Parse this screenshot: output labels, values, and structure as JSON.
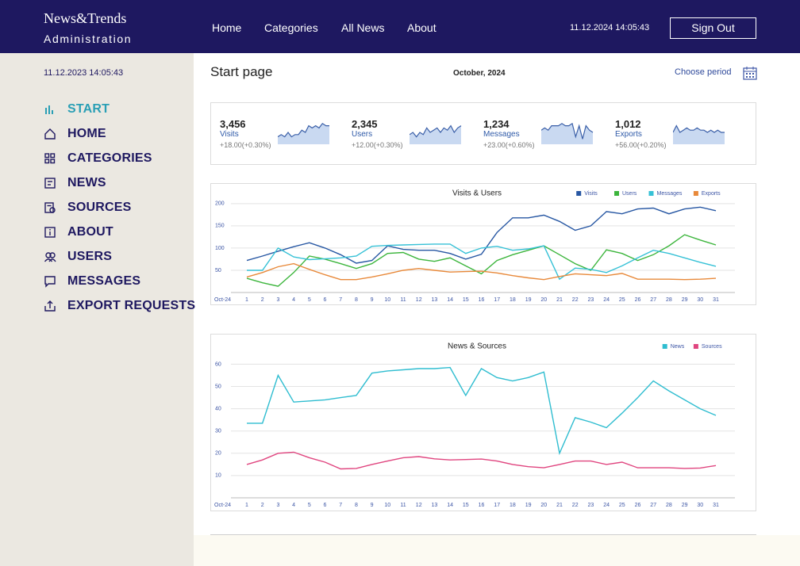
{
  "header": {
    "brand": "News&Trends",
    "subtitle": "Administration",
    "nav": [
      "Home",
      "Categories",
      "All News",
      "About"
    ],
    "datetime": "11.12.2024 14:05:43",
    "button": "Sign Out"
  },
  "sidebar": {
    "datetime": "11.12.2023 14:05:43",
    "menu": [
      "START",
      "HOME",
      "CATEGORIES",
      "NEWS",
      "SOURCES",
      "ABOUT",
      "USERS",
      "MESSAGES",
      "EXPORT REQUESTS"
    ]
  },
  "main": {
    "title": "Start page",
    "period": "October, 2024",
    "choose": "Choose period"
  },
  "stats": [
    {
      "value": "3,456",
      "label": "Visits",
      "change": "+18.00(+0.30%)",
      "spark": [
        3,
        4,
        3,
        5,
        3,
        4,
        4,
        6,
        5,
        8,
        7,
        8,
        7,
        9,
        8,
        8
      ]
    },
    {
      "value": "2,345",
      "label": "Users",
      "change": "+12.00(+0.30%)",
      "spark": [
        4,
        5,
        3,
        5,
        4,
        7,
        5,
        6,
        7,
        5,
        7,
        6,
        8,
        5,
        7,
        8
      ]
    },
    {
      "value": "1,234",
      "label": "Messages",
      "change": "+23.00(+0.60%)",
      "spark": [
        6,
        7,
        6,
        8,
        8,
        8,
        9,
        8,
        8,
        9,
        3,
        8,
        2,
        8,
        6,
        5
      ]
    },
    {
      "value": "1,012",
      "label": "Exports",
      "change": "+56.00(+0.20%)",
      "spark": [
        5,
        8,
        5,
        6,
        7,
        6,
        6,
        7,
        6,
        6,
        5,
        6,
        5,
        6,
        5,
        5
      ]
    }
  ],
  "chart_data": [
    {
      "type": "line",
      "title": "Visits & Users",
      "categories": [
        "Oct-24",
        "1",
        "2",
        "3",
        "4",
        "5",
        "6",
        "7",
        "8",
        "9",
        "10",
        "11",
        "12",
        "13",
        "14",
        "15",
        "16",
        "17",
        "18",
        "19",
        "20",
        "21",
        "22",
        "23",
        "24",
        "25",
        "26",
        "27",
        "28",
        "29",
        "30",
        "31"
      ],
      "ylim": [
        0,
        214
      ],
      "yticks": [
        50,
        100,
        150,
        200
      ],
      "grid": true,
      "legend": "top-right",
      "series": [
        {
          "name": "Visits",
          "color": "#2757a3",
          "values": [
            null,
            72,
            82,
            93,
            103,
            112,
            100,
            85,
            66,
            72,
            105,
            97,
            95,
            95,
            88,
            75,
            86,
            135,
            168,
            168,
            174,
            160,
            140,
            150,
            182,
            177,
            188,
            190,
            177,
            188,
            192,
            184
          ]
        },
        {
          "name": "Users",
          "color": "#3cb53c",
          "values": [
            null,
            32,
            22,
            14,
            45,
            82,
            75,
            65,
            54,
            65,
            88,
            90,
            75,
            70,
            78,
            60,
            42,
            72,
            85,
            95,
            105,
            85,
            65,
            50,
            96,
            88,
            72,
            85,
            105,
            130,
            118,
            107
          ]
        },
        {
          "name": "Messages",
          "color": "#36c1d6",
          "values": [
            null,
            50,
            50,
            100,
            80,
            74,
            76,
            78,
            82,
            104,
            106,
            107,
            108,
            109,
            109,
            88,
            100,
            104,
            95,
            98,
            105,
            30,
            55,
            52,
            45,
            60,
            78,
            95,
            88,
            78,
            68,
            59
          ]
        },
        {
          "name": "Exports",
          "color": "#e8893a",
          "values": [
            null,
            35,
            45,
            58,
            65,
            52,
            40,
            29,
            29,
            35,
            42,
            50,
            54,
            50,
            46,
            47,
            48,
            44,
            38,
            33,
            29,
            36,
            42,
            40,
            38,
            43,
            30,
            30,
            30,
            29,
            30,
            32
          ]
        }
      ]
    },
    {
      "type": "line",
      "title": "News & Sources",
      "categories": [
        "Oct-24",
        "1",
        "2",
        "3",
        "4",
        "5",
        "6",
        "7",
        "8",
        "9",
        "10",
        "11",
        "12",
        "13",
        "14",
        "15",
        "16",
        "17",
        "18",
        "19",
        "20",
        "21",
        "22",
        "23",
        "24",
        "25",
        "26",
        "27",
        "28",
        "29",
        "30",
        "31"
      ],
      "ylim": [
        0,
        63
      ],
      "yticks": [
        10,
        20,
        30,
        40,
        50,
        60
      ],
      "grid": true,
      "legend": "top-right",
      "series": [
        {
          "name": "News",
          "color": "#2fbdd0",
          "values": [
            null,
            33.5,
            33.5,
            55,
            43,
            43.5,
            44,
            45,
            46,
            56,
            57,
            57.5,
            58,
            58,
            58.5,
            46,
            58,
            54,
            52.5,
            54,
            56.5,
            20,
            36,
            34,
            31.5,
            38,
            45,
            52.5,
            48,
            44,
            40,
            37
          ]
        },
        {
          "name": "Sources",
          "color": "#e0457f",
          "values": [
            null,
            15,
            17,
            20,
            20.5,
            18,
            16,
            13,
            13.2,
            15,
            16.5,
            18,
            18.5,
            17.5,
            17,
            17.2,
            17.4,
            16.5,
            15,
            14,
            13.5,
            15,
            16.5,
            16.5,
            15,
            16,
            13.5,
            13.5,
            13.5,
            13.2,
            13.4,
            14.5
          ]
        }
      ]
    }
  ]
}
